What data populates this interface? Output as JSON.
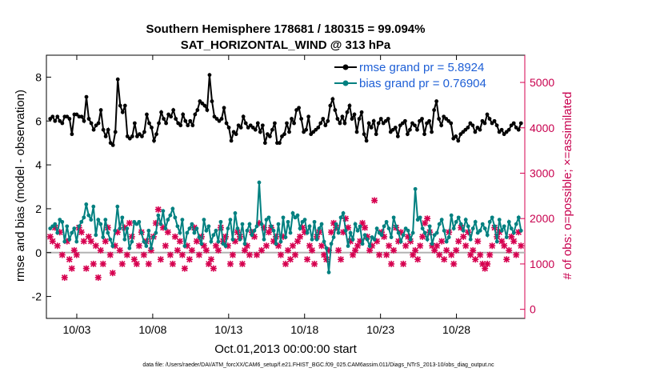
{
  "chart_data": {
    "type": "line",
    "title": "Southern Hemisphere 178681 / 180315 = 99.094%",
    "subtitle": "SAT_HORIZONTAL_WIND @ 313 hPa",
    "xlabel": "Oct.01,2013 00:00:00 start",
    "ylabel": "rmse and bias (model - observation)",
    "ylabel_right": "# of obs: o=possible; ×=assimilated",
    "footnote": "data file: /Users/raeder/DAI/ATM_forcXX/CAM6_setup/f.e21.FHIST_BGC.f09_025.CAM6assim.011/Diags_NTrS_2013-10/obs_diag_output.nc",
    "xlim": [
      1.0,
      32.5
    ],
    "ylim": [
      -3,
      9
    ],
    "ylim_right": [
      -200,
      5600
    ],
    "x_ticks": [
      3,
      8,
      13,
      18,
      23,
      28
    ],
    "x_ticklabels": [
      "10/03",
      "10/08",
      "10/13",
      "10/18",
      "10/23",
      "10/28"
    ],
    "y_ticks": [
      -2,
      0,
      2,
      4,
      6,
      8
    ],
    "y_ticklabels": [
      "-2",
      "0",
      "2",
      "4",
      "6",
      "8"
    ],
    "y_ticks_right": [
      0,
      1000,
      2000,
      3000,
      4000,
      5000
    ],
    "y_ticklabels_right": [
      "0",
      "1000",
      "2000",
      "3000",
      "4000",
      "5000"
    ],
    "zero_line": 0,
    "grid": false,
    "legend_position": "top-right",
    "series": [
      {
        "name": "rmse grand pr = 5.8924",
        "axis": "left",
        "color": "#000000",
        "values": [
          6.1,
          6.2,
          6.0,
          6.2,
          6.0,
          5.9,
          6.2,
          6.2,
          6.1,
          5.4,
          6.3,
          6.3,
          6.2,
          6.2,
          6.0,
          7.1,
          6.1,
          5.9,
          5.6,
          5.8,
          5.9,
          6.5,
          5.6,
          5.3,
          5.6,
          5.0,
          4.9,
          5.5,
          7.9,
          6.7,
          6.4,
          6.7,
          5.3,
          5.2,
          5.3,
          5.9,
          5.3,
          5.4,
          5.3,
          5.5,
          6.3,
          5.9,
          5.7,
          5.1,
          5.4,
          5.9,
          6.4,
          6.1,
          5.9,
          6.3,
          6.2,
          6.5,
          6.1,
          5.9,
          5.8,
          6.3,
          6.0,
          5.8,
          6.0,
          5.8,
          6.3,
          6.5,
          6.9,
          6.8,
          6.7,
          6.5,
          8.1,
          6.9,
          6.2,
          6.1,
          6.0,
          6.1,
          6.6,
          5.9,
          5.7,
          5.1,
          5.5,
          5.4,
          5.8,
          5.7,
          6.2,
          5.9,
          5.7,
          5.8,
          5.7,
          5.6,
          5.9,
          5.5,
          5.8,
          5.0,
          5.4,
          5.3,
          5.6,
          5.9,
          5.0,
          5.0,
          5.3,
          5.4,
          5.9,
          5.5,
          6.1,
          5.9,
          6.5,
          6.6,
          6.1,
          5.5,
          5.6,
          6.2,
          5.4,
          5.5,
          5.6,
          5.7,
          5.9,
          6.1,
          5.8,
          6.0,
          6.7,
          7.0,
          6.5,
          6.1,
          5.9,
          6.2,
          5.9,
          6.4,
          6.7,
          6.1,
          6.3,
          5.5,
          6.1,
          6.4,
          5.4,
          5.1,
          5.9,
          5.7,
          6.0,
          5.4,
          5.9,
          6.1,
          5.9,
          6.0,
          6.1,
          5.5,
          5.6,
          5.7,
          5.3,
          5.8,
          5.9,
          6.0,
          5.4,
          5.6,
          5.9,
          5.8,
          5.6,
          6.0,
          6.1,
          5.4,
          5.9,
          6.0,
          5.5,
          6.5,
          6.9,
          6.1,
          5.8,
          6.2,
          6.1,
          6.0,
          5.9,
          5.2,
          5.3,
          5.1,
          5.4,
          5.5,
          5.6,
          5.7,
          5.9,
          5.8,
          5.5,
          5.7,
          5.6,
          6.0,
          5.9,
          6.3,
          6.1,
          5.9,
          6.0,
          5.8,
          5.5,
          5.6,
          5.4,
          5.5,
          5.6,
          5.8,
          5.9,
          5.7,
          5.6,
          5.9
        ]
      },
      {
        "name": "bias grand pr = 0.76904",
        "axis": "left",
        "color": "#008080",
        "values": [
          1.1,
          1.2,
          1.3,
          0.9,
          1.5,
          1.4,
          0.5,
          1.2,
          0.6,
          0.9,
          1.1,
          0.5,
          1.2,
          1.4,
          1.6,
          2.2,
          1.7,
          1.5,
          2.1,
          0.8,
          1.5,
          1.3,
          0.7,
          1.5,
          0.9,
          0.6,
          0.3,
          1.0,
          2.1,
          1.1,
          1.6,
          0.6,
          1.1,
          0.2,
          0.5,
          1.4,
          1.3,
          1.4,
          0.9,
          0.5,
          0.3,
          1.0,
          0.2,
          0.7,
          0.9,
          1.7,
          1.3,
          1.9,
          1.1,
          1.5,
          1.7,
          2.0,
          1.6,
          1.2,
          0.9,
          1.5,
          0.3,
          0.9,
          1.1,
          1.3,
          0.9,
          1.1,
          0.7,
          0.4,
          1.5,
          1.0,
          1.2,
          0.5,
          0.8,
          1.0,
          0.5,
          1.4,
          0.4,
          0.3,
          1.1,
          1.5,
          0.6,
          1.8,
          1.1,
          0.6,
          1.3,
          0.4,
          1.0,
          1.3,
          0.8,
          1.0,
          1.2,
          3.2,
          1.3,
          0.6,
          1.5,
          1.6,
          1.2,
          1.0,
          0.4,
          1.3,
          0.5,
          1.6,
          0.7,
          1.4,
          0.9,
          1.8,
          1.6,
          1.7,
          1.1,
          1.4,
          1.5,
          0.9,
          1.2,
          0.6,
          1.4,
          0.6,
          1.1,
          1.3,
          0.5,
          0.2,
          -0.9,
          0.4,
          0.7,
          1.3,
          0.9,
          1.6,
          1.8,
          1.0,
          0.3,
          0.9,
          0.6,
          1.3,
          1.0,
          1.2,
          0.4,
          0.8,
          0.6,
          0.3,
          0.7,
          0.6,
          1.1,
          0.9,
          0.8,
          1.2,
          1.4,
          1.1,
          0.7,
          1.6,
          1.2,
          0.9,
          0.5,
          0.8,
          1.1,
          1.0,
          0.6,
          0.9,
          2.9,
          1.5,
          1.6,
          1.1,
          0.9,
          0.6,
          1.2,
          0.4,
          0.8,
          0.9,
          1.3,
          1.5,
          1.0,
          0.5,
          0.7,
          1.7,
          1.1,
          1.4,
          1.6,
          1.3,
          1.0,
          1.5,
          1.2,
          0.6,
          1.1,
          1.4,
          0.9,
          1.0,
          1.3,
          1.1,
          0.8,
          1.4,
          1.6,
          1.2,
          0.5,
          1.5,
          1.0,
          1.2,
          0.7,
          1.4,
          1.1,
          0.9,
          1.3,
          1.6,
          1.0
        ]
      },
      {
        "name": "obs possible / assimilated",
        "axis": "right",
        "color": "#d6004f",
        "values": [
          1600,
          1500,
          1800,
          1400,
          1700,
          1200,
          700,
          1500,
          1100,
          900,
          1300,
          1200,
          1800,
          1700,
          1500,
          900,
          1600,
          1500,
          1000,
          1400,
          700,
          1300,
          1000,
          1500,
          1800,
          1200,
          800,
          1400,
          1700,
          1300,
          1000,
          1800,
          1200,
          1900,
          1600,
          1100,
          1000,
          1400,
          1700,
          1200,
          1500,
          1000,
          1300,
          1600,
          1900,
          2200,
          1100,
          1800,
          1400,
          1700,
          1200,
          1000,
          1600,
          1300,
          1500,
          1200,
          900,
          1400,
          1100,
          1300,
          1800,
          1500,
          1200,
          1600,
          1400,
          1300,
          1000,
          1100,
          900,
          1400,
          1300,
          1800,
          1500,
          1600,
          1400,
          1000,
          1200,
          1500,
          1700,
          1600,
          1000,
          1300,
          1400,
          1200,
          1700,
          1600,
          1200,
          1900,
          1300,
          1800,
          1400,
          1700,
          1800,
          1500,
          1600,
          1400,
          1200,
          1600,
          1000,
          1300,
          1100,
          1400,
          1200,
          1500,
          1600,
          1800,
          1700,
          1100,
          1400,
          1300,
          1000,
          1600,
          1700,
          1400,
          1200,
          1100,
          1300,
          1700,
          1900,
          1800,
          1300,
          1100,
          1700,
          2000,
          1800,
          1500,
          1200,
          1300,
          1400,
          1500,
          1900,
          1800,
          1600,
          1300,
          1400,
          2400,
          1500,
          1200,
          1700,
          1600,
          1200,
          1400,
          1000,
          1300,
          1800,
          1500,
          1700,
          1000,
          1400,
          1600,
          1500,
          1200,
          1300,
          1100,
          1400,
          1600,
          1900,
          2000,
          1700,
          1400,
          1300,
          1400,
          1200,
          1500,
          1100,
          1300,
          1700,
          1200,
          1000,
          1300,
          1500,
          1800,
          1600,
          1400,
          1700,
          1200,
          1300,
          1100,
          1500,
          1200,
          1000,
          900,
          1000,
          1200,
          1400,
          1800,
          1600,
          1700,
          1500,
          1400,
          1100,
          1300,
          1600,
          1500,
          1200,
          1700,
          1400
        ]
      }
    ]
  }
}
